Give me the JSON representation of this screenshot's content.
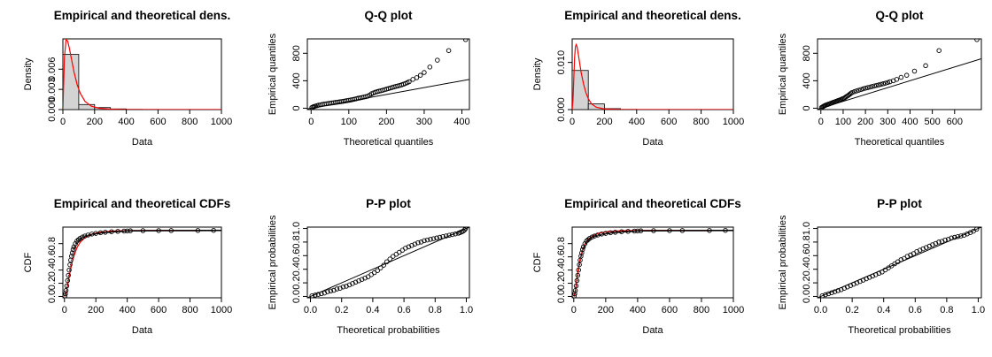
{
  "chart_data": [
    {
      "type": "histogram-density",
      "title": "Empirical and theoretical dens.",
      "xlabel": "Data",
      "ylabel": "Density",
      "xlim": [
        0,
        1000
      ],
      "ylim": [
        0,
        0.0105
      ],
      "xticks": [
        0,
        200,
        400,
        600,
        800,
        1000
      ],
      "xtick_labels": [
        "0",
        "200",
        "400",
        "600",
        "800",
        "1000"
      ],
      "yticks": [
        0,
        0.003,
        0.006
      ],
      "ytick_labels": [
        "0.000",
        "0.003",
        "0.006"
      ],
      "histogram": [
        {
          "x0": 0,
          "x1": 100,
          "density": 0.0082
        },
        {
          "x0": 100,
          "x1": 200,
          "density": 0.00075
        },
        {
          "x0": 200,
          "x1": 300,
          "density": 0.0003
        },
        {
          "x0": 300,
          "x1": 400,
          "density": 0.0001
        },
        {
          "x0": 400,
          "x1": 500,
          "density": 3e-05
        },
        {
          "x0": 500,
          "x1": 600,
          "density": 2e-05
        },
        {
          "x0": 600,
          "x1": 700,
          "density": 1e-05
        },
        {
          "x0": 700,
          "x1": 800,
          "density": 1e-05
        },
        {
          "x0": 800,
          "x1": 900,
          "density": 1e-05
        },
        {
          "x0": 900,
          "x1": 1000,
          "density": 1e-05
        }
      ],
      "density_curve": {
        "x": [
          0,
          5,
          10,
          20,
          30,
          40,
          55,
          70,
          90,
          110,
          140,
          180,
          230,
          300,
          400,
          550,
          700,
          1000
        ],
        "y": [
          0,
          0.004,
          0.0078,
          0.0104,
          0.0102,
          0.0092,
          0.0074,
          0.0056,
          0.0037,
          0.0024,
          0.0012,
          0.0005,
          0.0002,
          6e-05,
          1e-05,
          0,
          0,
          0
        ]
      }
    },
    {
      "type": "scatter",
      "title": "Q-Q plot",
      "xlabel": "Theoretical quantiles",
      "ylabel": "Empirical quantiles",
      "xlim": [
        -10,
        420
      ],
      "ylim": [
        -20,
        1010
      ],
      "xticks": [
        0,
        100,
        200,
        300,
        400
      ],
      "xtick_labels": [
        "0",
        "100",
        "200",
        "300",
        "400"
      ],
      "yticks": [
        0,
        400,
        800
      ],
      "ytick_labels": [
        "0",
        "400",
        "800"
      ],
      "refline": {
        "slope": 1,
        "intercept": 0
      },
      "points": {
        "x": [
          2,
          5,
          8,
          12,
          16,
          20,
          25,
          30,
          35,
          40,
          45,
          50,
          55,
          60,
          65,
          70,
          75,
          80,
          85,
          90,
          95,
          100,
          105,
          110,
          115,
          120,
          125,
          130,
          135,
          140,
          145,
          150,
          155,
          160,
          165,
          170,
          175,
          180,
          185,
          190,
          195,
          200,
          205,
          210,
          215,
          220,
          225,
          230,
          235,
          240,
          245,
          250,
          255,
          260,
          270,
          280,
          290,
          300,
          315,
          335,
          365,
          410
        ],
        "y": [
          10,
          18,
          25,
          32,
          38,
          45,
          50,
          55,
          60,
          64,
          68,
          72,
          76,
          80,
          84,
          88,
          92,
          96,
          100,
          105,
          110,
          115,
          120,
          126,
          132,
          138,
          145,
          150,
          156,
          162,
          168,
          175,
          190,
          210,
          222,
          232,
          240,
          248,
          255,
          262,
          270,
          278,
          286,
          294,
          302,
          310,
          318,
          325,
          332,
          340,
          350,
          360,
          372,
          385,
          420,
          445,
          480,
          520,
          600,
          700,
          840,
          1000
        ]
      }
    },
    {
      "type": "histogram-density",
      "title": "Empirical and theoretical dens.",
      "xlabel": "Data",
      "ylabel": "Density",
      "xlim": [
        0,
        1000
      ],
      "ylim": [
        0,
        0.015
      ],
      "xticks": [
        0,
        200,
        400,
        600,
        800,
        1000
      ],
      "xtick_labels": [
        "0",
        "200",
        "400",
        "600",
        "800",
        "1000"
      ],
      "yticks": [
        0,
        0.01
      ],
      "ytick_labels": [
        "0.000",
        "0.010"
      ],
      "histogram": [
        {
          "x0": 0,
          "x1": 100,
          "density": 0.0083
        },
        {
          "x0": 100,
          "x1": 200,
          "density": 0.0012
        },
        {
          "x0": 200,
          "x1": 300,
          "density": 0.0002
        },
        {
          "x0": 300,
          "x1": 400,
          "density": 4e-05
        },
        {
          "x0": 400,
          "x1": 500,
          "density": 2e-05
        },
        {
          "x0": 500,
          "x1": 600,
          "density": 1e-05
        },
        {
          "x0": 600,
          "x1": 700,
          "density": 1e-05
        },
        {
          "x0": 700,
          "x1": 800,
          "density": 1e-05
        },
        {
          "x0": 800,
          "x1": 900,
          "density": 1e-05
        },
        {
          "x0": 900,
          "x1": 1000,
          "density": 1e-05
        }
      ],
      "density_curve": {
        "x": [
          0,
          5,
          10,
          15,
          20,
          25,
          30,
          35,
          45,
          55,
          70,
          85,
          100,
          120,
          150,
          200,
          300,
          500,
          1000
        ],
        "y": [
          0,
          0.002,
          0.0065,
          0.011,
          0.0133,
          0.0138,
          0.0134,
          0.0124,
          0.0102,
          0.008,
          0.0055,
          0.0036,
          0.0023,
          0.0012,
          0.0005,
          0.00012,
          1e-05,
          0,
          0
        ]
      }
    },
    {
      "type": "scatter",
      "title": "Q-Q plot",
      "xlabel": "Theoretical quantiles",
      "ylabel": "Empirical quantiles",
      "xlim": [
        -15,
        720
      ],
      "ylim": [
        -20,
        1010
      ],
      "xticks": [
        0,
        100,
        200,
        300,
        400,
        500,
        600
      ],
      "xtick_labels": [
        "0",
        "100",
        "200",
        "300",
        "400",
        "500",
        "600"
      ],
      "yticks": [
        0,
        400,
        800
      ],
      "ytick_labels": [
        "0",
        "400",
        "800"
      ],
      "refline": {
        "slope": 1,
        "intercept": 0
      },
      "points": {
        "x": [
          3,
          8,
          12,
          16,
          20,
          25,
          30,
          35,
          40,
          45,
          50,
          55,
          60,
          65,
          70,
          75,
          80,
          85,
          90,
          95,
          100,
          105,
          110,
          115,
          120,
          125,
          130,
          135,
          140,
          150,
          160,
          170,
          180,
          190,
          200,
          210,
          220,
          230,
          240,
          250,
          260,
          270,
          280,
          290,
          300,
          310,
          325,
          340,
          360,
          385,
          420,
          470,
          530,
          700
        ],
        "y": [
          10,
          20,
          28,
          35,
          42,
          48,
          54,
          60,
          66,
          72,
          78,
          84,
          90,
          96,
          102,
          108,
          114,
          120,
          127,
          134,
          140,
          148,
          158,
          170,
          180,
          192,
          205,
          218,
          228,
          240,
          252,
          262,
          272,
          282,
          292,
          300,
          308,
          316,
          325,
          332,
          340,
          348,
          356,
          365,
          375,
          385,
          400,
          420,
          450,
          480,
          540,
          620,
          840,
          1000
        ]
      }
    },
    {
      "type": "ecdf",
      "title": "Empirical and theoretical CDFs",
      "xlabel": "Data",
      "ylabel": "CDF",
      "xlim": [
        -10,
        1000
      ],
      "ylim": [
        -0.02,
        1.05
      ],
      "xticks": [
        0,
        200,
        400,
        600,
        800,
        1000
      ],
      "xtick_labels": [
        "0",
        "200",
        "400",
        "600",
        "800",
        "1000"
      ],
      "yticks": [
        0,
        0.2,
        0.4,
        0.6,
        0.8
      ],
      "ytick_labels": [
        "0.0",
        "0.2",
        "0.4",
        "0.6",
        "0.8"
      ],
      "ecdf_points": {
        "x": [
          3,
          6,
          10,
          15,
          20,
          25,
          30,
          35,
          40,
          45,
          50,
          55,
          60,
          70,
          80,
          90,
          100,
          115,
          130,
          150,
          175,
          200,
          230,
          260,
          300,
          340,
          380,
          400,
          420,
          500,
          600,
          680,
          850,
          950
        ],
        "y": [
          0.01,
          0.04,
          0.09,
          0.16,
          0.24,
          0.32,
          0.4,
          0.48,
          0.55,
          0.61,
          0.66,
          0.71,
          0.75,
          0.8,
          0.84,
          0.86,
          0.88,
          0.9,
          0.915,
          0.93,
          0.945,
          0.955,
          0.965,
          0.972,
          0.98,
          0.985,
          0.99,
          0.992,
          0.994,
          0.996,
          0.997,
          0.998,
          0.999,
          1.0
        ]
      },
      "theoretical_cdf": {
        "x": [
          0,
          10,
          20,
          30,
          45,
          60,
          80,
          100,
          130,
          170,
          220,
          300,
          400,
          600,
          1000
        ],
        "y": [
          0,
          0.05,
          0.17,
          0.3,
          0.48,
          0.61,
          0.74,
          0.82,
          0.89,
          0.94,
          0.97,
          0.99,
          0.997,
          1.0,
          1.0
        ]
      }
    },
    {
      "type": "scatter",
      "title": "P-P plot",
      "xlabel": "Theoretical probabilities",
      "ylabel": "Empirical probabilities",
      "xlim": [
        -0.02,
        1.02
      ],
      "ylim": [
        -0.02,
        1.02
      ],
      "xticks": [
        0,
        0.2,
        0.4,
        0.6,
        0.8,
        1.0
      ],
      "xtick_labels": [
        "0.0",
        "0.2",
        "0.4",
        "0.6",
        "0.8",
        "1.0"
      ],
      "yticks": [
        0,
        0.2,
        0.4,
        0.6,
        0.8,
        1.0
      ],
      "ytick_labels": [
        "0.0",
        "0.2",
        "0.4",
        "0.6",
        "0.8",
        "1.0"
      ],
      "refline": {
        "slope": 1,
        "intercept": 0
      },
      "points": {
        "x": [
          0.01,
          0.03,
          0.05,
          0.07,
          0.09,
          0.11,
          0.13,
          0.15,
          0.17,
          0.19,
          0.21,
          0.23,
          0.25,
          0.27,
          0.29,
          0.31,
          0.33,
          0.35,
          0.37,
          0.39,
          0.41,
          0.43,
          0.45,
          0.47,
          0.49,
          0.51,
          0.53,
          0.55,
          0.57,
          0.59,
          0.61,
          0.63,
          0.65,
          0.67,
          0.69,
          0.71,
          0.73,
          0.75,
          0.77,
          0.79,
          0.81,
          0.83,
          0.85,
          0.87,
          0.89,
          0.91,
          0.93,
          0.95,
          0.96,
          0.97,
          0.98,
          0.99,
          0.995
        ],
        "y": [
          0.01,
          0.02,
          0.03,
          0.04,
          0.05,
          0.07,
          0.08,
          0.09,
          0.11,
          0.12,
          0.14,
          0.15,
          0.17,
          0.19,
          0.21,
          0.23,
          0.25,
          0.27,
          0.29,
          0.32,
          0.35,
          0.38,
          0.42,
          0.46,
          0.51,
          0.55,
          0.59,
          0.62,
          0.65,
          0.68,
          0.71,
          0.73,
          0.75,
          0.77,
          0.79,
          0.8,
          0.82,
          0.83,
          0.84,
          0.85,
          0.86,
          0.87,
          0.88,
          0.89,
          0.9,
          0.91,
          0.92,
          0.93,
          0.94,
          0.95,
          0.96,
          0.98,
          1.0
        ]
      }
    },
    {
      "type": "ecdf",
      "title": "Empirical and theoretical CDFs",
      "xlabel": "Data",
      "ylabel": "CDF",
      "xlim": [
        -10,
        1000
      ],
      "ylim": [
        -0.02,
        1.05
      ],
      "xticks": [
        0,
        200,
        400,
        600,
        800,
        1000
      ],
      "xtick_labels": [
        "0",
        "200",
        "400",
        "600",
        "800",
        "1000"
      ],
      "yticks": [
        0,
        0.2,
        0.4,
        0.6,
        0.8
      ],
      "ytick_labels": [
        "0.0",
        "0.2",
        "0.4",
        "0.6",
        "0.8"
      ],
      "ecdf_points": {
        "x": [
          3,
          6,
          10,
          15,
          20,
          25,
          30,
          35,
          40,
          45,
          50,
          55,
          60,
          70,
          80,
          90,
          100,
          115,
          130,
          150,
          175,
          200,
          230,
          260,
          300,
          340,
          380,
          400,
          420,
          500,
          600,
          680,
          850,
          950
        ],
        "y": [
          0.01,
          0.04,
          0.09,
          0.16,
          0.24,
          0.32,
          0.4,
          0.48,
          0.55,
          0.61,
          0.66,
          0.71,
          0.75,
          0.8,
          0.84,
          0.86,
          0.88,
          0.9,
          0.915,
          0.93,
          0.945,
          0.955,
          0.965,
          0.972,
          0.98,
          0.985,
          0.99,
          0.992,
          0.994,
          0.996,
          0.997,
          0.998,
          0.999,
          1.0
        ]
      },
      "theoretical_cdf": {
        "x": [
          0,
          8,
          15,
          22,
          30,
          40,
          55,
          70,
          90,
          120,
          160,
          220,
          300,
          450,
          1000
        ],
        "y": [
          0,
          0.06,
          0.18,
          0.31,
          0.44,
          0.57,
          0.7,
          0.79,
          0.86,
          0.92,
          0.96,
          0.985,
          0.995,
          1.0,
          1.0
        ]
      }
    },
    {
      "type": "scatter",
      "title": "P-P plot",
      "xlabel": "Theoretical probabilities",
      "ylabel": "Empirical probabilities",
      "xlim": [
        -0.02,
        1.02
      ],
      "ylim": [
        -0.02,
        1.02
      ],
      "xticks": [
        0,
        0.2,
        0.4,
        0.6,
        0.8,
        1.0
      ],
      "xtick_labels": [
        "0.0",
        "0.2",
        "0.4",
        "0.6",
        "0.8",
        "1.0"
      ],
      "yticks": [
        0,
        0.2,
        0.4,
        0.6,
        0.8,
        1.0
      ],
      "ytick_labels": [
        "0.0",
        "0.2",
        "0.4",
        "0.6",
        "0.8",
        "1.0"
      ],
      "refline": {
        "slope": 1,
        "intercept": 0
      },
      "points": {
        "x": [
          0.01,
          0.03,
          0.05,
          0.07,
          0.09,
          0.11,
          0.13,
          0.15,
          0.17,
          0.19,
          0.21,
          0.23,
          0.25,
          0.27,
          0.29,
          0.31,
          0.33,
          0.35,
          0.37,
          0.39,
          0.41,
          0.43,
          0.45,
          0.47,
          0.49,
          0.51,
          0.53,
          0.55,
          0.57,
          0.59,
          0.61,
          0.63,
          0.65,
          0.67,
          0.69,
          0.71,
          0.73,
          0.75,
          0.77,
          0.79,
          0.81,
          0.83,
          0.85,
          0.87,
          0.89,
          0.91,
          0.93,
          0.95,
          0.97,
          0.99
        ],
        "y": [
          0.01,
          0.025,
          0.04,
          0.055,
          0.07,
          0.085,
          0.1,
          0.12,
          0.14,
          0.16,
          0.18,
          0.2,
          0.22,
          0.24,
          0.26,
          0.28,
          0.3,
          0.32,
          0.34,
          0.36,
          0.39,
          0.42,
          0.45,
          0.48,
          0.51,
          0.54,
          0.56,
          0.59,
          0.61,
          0.63,
          0.66,
          0.68,
          0.7,
          0.72,
          0.74,
          0.76,
          0.78,
          0.8,
          0.81,
          0.83,
          0.84,
          0.86,
          0.87,
          0.88,
          0.89,
          0.9,
          0.92,
          0.94,
          0.96,
          0.99
        ]
      }
    }
  ],
  "colors": {
    "axis": "#000000",
    "bar_fill": "#d3d3d3",
    "theoretical": "#ff0000",
    "points": "#000000"
  }
}
